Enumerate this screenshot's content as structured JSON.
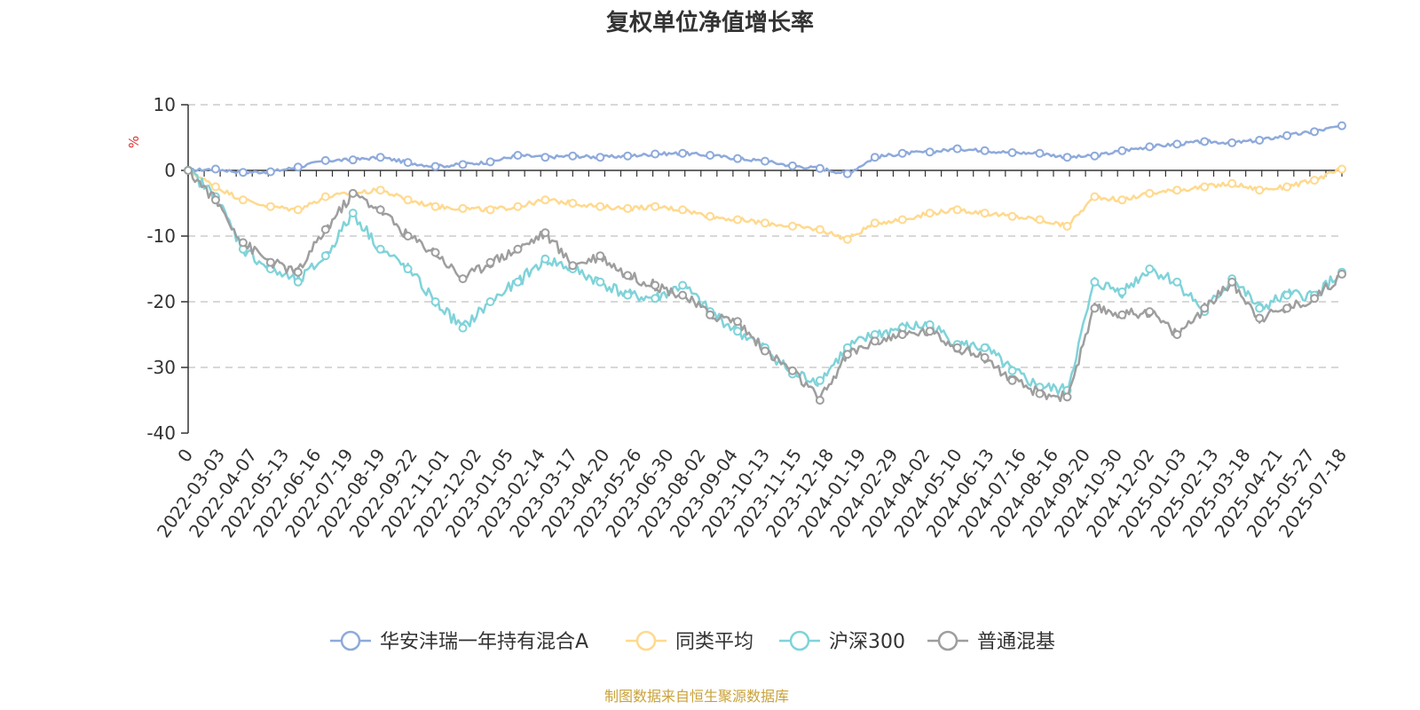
{
  "chart_data": {
    "type": "line",
    "title": "复权单位净值增长率",
    "ylabel": "%",
    "ylim": [
      -40,
      10
    ],
    "yticks": [
      "10",
      "0",
      "-10",
      "-20",
      "-30",
      "-40"
    ],
    "x_tick_labels": [
      "0",
      "2022-03-03",
      "2022-04-07",
      "2022-05-13",
      "2022-06-16",
      "2022-07-19",
      "2022-08-19",
      "2022-09-22",
      "2022-11-01",
      "2022-12-02",
      "2023-01-05",
      "2023-02-14",
      "2023-03-17",
      "2023-04-20",
      "2023-05-26",
      "2023-06-30",
      "2023-08-02",
      "2023-09-04",
      "2023-10-13",
      "2023-11-15",
      "2023-12-18",
      "2024-01-19",
      "2024-02-29",
      "2024-04-02",
      "2024-05-10",
      "2024-06-13",
      "2024-07-16",
      "2024-08-16",
      "2024-09-20",
      "2024-10-30",
      "2024-12-02",
      "2025-01-03",
      "2025-02-13",
      "2025-03-18",
      "2025-04-21",
      "2025-05-27",
      "2025-07-18"
    ],
    "grid": "horizontal dashed",
    "legend_position": "bottom",
    "series": [
      {
        "name": "华安沣瑞一年持有混合A",
        "color": "#8eaadb",
        "values": [
          0,
          0.2,
          -0.3,
          -0.2,
          0.5,
          1.5,
          1.6,
          2.0,
          1.2,
          0.6,
          0.9,
          1.3,
          2.3,
          2.0,
          2.2,
          2.0,
          2.2,
          2.5,
          2.6,
          2.3,
          1.8,
          1.4,
          0.7,
          0.3,
          -0.5,
          2.0,
          2.6,
          2.8,
          3.3,
          3.0,
          2.7,
          2.6,
          2.0,
          2.2,
          3.0,
          3.6,
          4.0,
          4.4,
          4.2,
          4.6,
          5.3,
          5.9,
          6.8
        ]
      },
      {
        "name": "同类平均",
        "color": "#ffd98e",
        "values": [
          0,
          -2.5,
          -4.5,
          -5.5,
          -6.0,
          -4.0,
          -3.5,
          -3.0,
          -4.5,
          -5.5,
          -5.8,
          -6.0,
          -5.5,
          -4.5,
          -5.0,
          -5.5,
          -5.8,
          -5.5,
          -6.0,
          -7.0,
          -7.5,
          -8.0,
          -8.5,
          -9.0,
          -10.5,
          -8.0,
          -7.5,
          -6.5,
          -6.0,
          -6.5,
          -7.0,
          -7.5,
          -8.5,
          -4.0,
          -4.5,
          -3.5,
          -3.0,
          -2.5,
          -2.0,
          -3.0,
          -2.5,
          -1.5,
          0.2
        ]
      },
      {
        "name": "沪深300",
        "color": "#7fd3d9",
        "values": [
          0,
          -4.0,
          -12.0,
          -15.0,
          -17.0,
          -13.0,
          -6.5,
          -12.0,
          -15.0,
          -20.0,
          -24.0,
          -20.0,
          -17.0,
          -13.5,
          -15.0,
          -17.0,
          -19.0,
          -19.5,
          -17.5,
          -21.5,
          -24.5,
          -27.0,
          -31.0,
          -32.0,
          -27.0,
          -25.0,
          -24.0,
          -23.5,
          -26.5,
          -27.0,
          -30.5,
          -33.0,
          -33.5,
          -17.0,
          -18.5,
          -15.0,
          -17.0,
          -21.5,
          -16.5,
          -21.0,
          -19.0,
          -19.0,
          -15.5
        ]
      },
      {
        "name": "普通混基",
        "color": "#9e9e9e",
        "values": [
          0,
          -4.5,
          -11.0,
          -14.0,
          -15.5,
          -9.0,
          -3.5,
          -6.0,
          -10.0,
          -12.5,
          -16.5,
          -14.0,
          -12.0,
          -9.5,
          -14.5,
          -13.0,
          -16.0,
          -17.5,
          -19.0,
          -22.0,
          -23.0,
          -27.5,
          -30.5,
          -35.0,
          -28.0,
          -26.0,
          -25.0,
          -24.5,
          -27.0,
          -28.5,
          -32.0,
          -34.0,
          -34.5,
          -21.0,
          -22.0,
          -21.5,
          -25.0,
          -21.0,
          -17.0,
          -22.5,
          -21.0,
          -19.5,
          -15.8
        ]
      }
    ]
  },
  "footer": {
    "source": "制图数据来自恒生聚源数据库"
  }
}
